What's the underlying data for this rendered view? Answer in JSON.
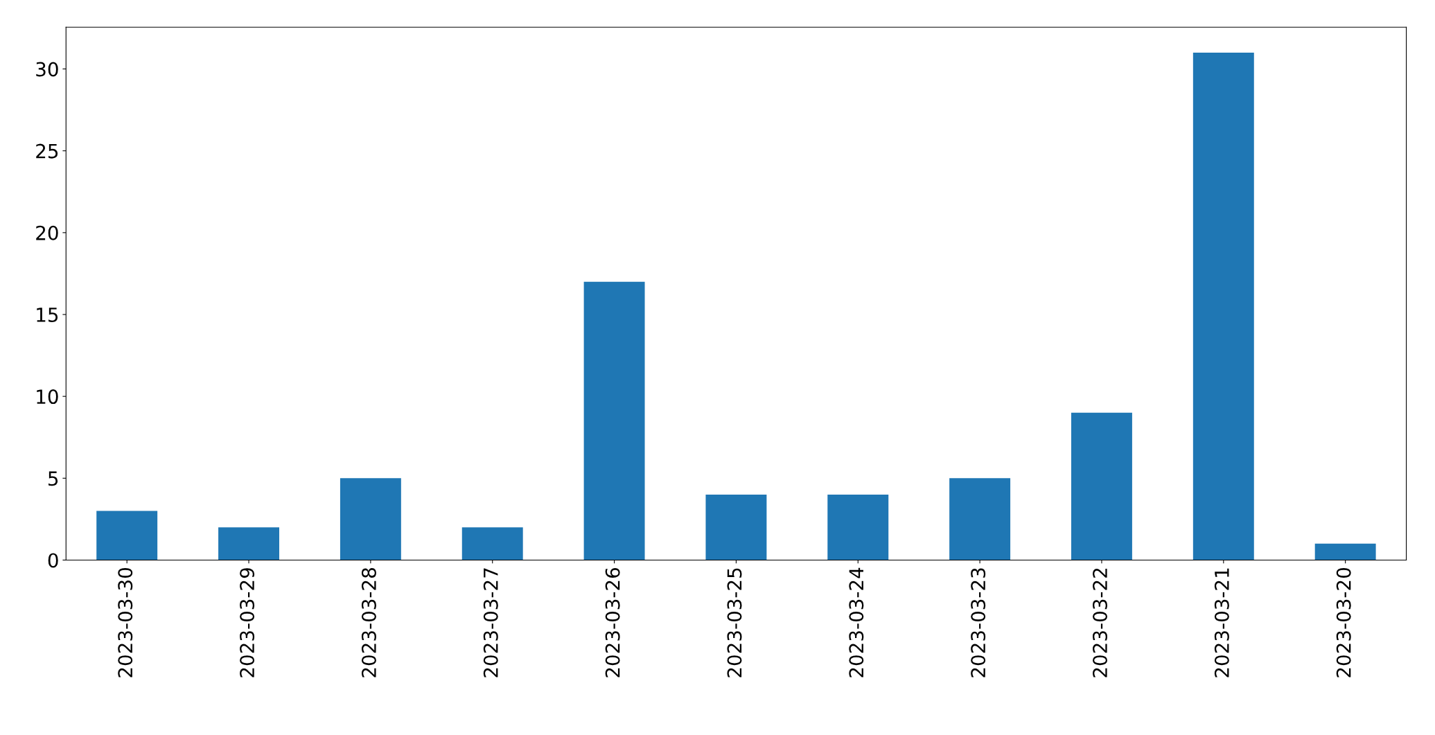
{
  "chart_data": {
    "type": "bar",
    "categories": [
      "2023-03-30",
      "2023-03-29",
      "2023-03-28",
      "2023-03-27",
      "2023-03-26",
      "2023-03-25",
      "2023-03-24",
      "2023-03-23",
      "2023-03-22",
      "2023-03-21",
      "2023-03-20"
    ],
    "values": [
      3,
      2,
      5,
      2,
      17,
      4,
      4,
      5,
      9,
      31,
      1
    ],
    "color": "#1f77b4",
    "ylim": [
      0,
      32.55
    ],
    "yticks": [
      0,
      5,
      10,
      15,
      20,
      25,
      30
    ],
    "grid": false,
    "legend": false
  }
}
